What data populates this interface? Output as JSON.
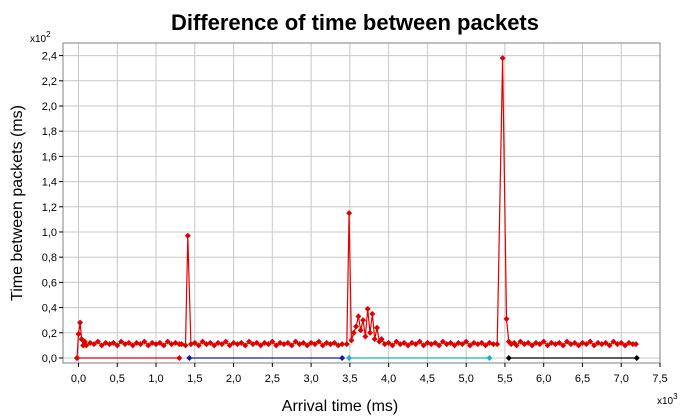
{
  "chart_data": {
    "type": "line",
    "title": "Difference of time between packets",
    "xlabel": "Arrival time (ms)",
    "ylabel": "Time between packets (ms)",
    "x_multiplier_label": "x10",
    "x_multiplier_exp": "3",
    "y_multiplier_label": "x10",
    "y_multiplier_exp": "2",
    "xlim": [
      -0.2,
      7.5
    ],
    "ylim": [
      -0.04,
      2.5
    ],
    "grid": true,
    "x_ticks": [
      0.0,
      0.5,
      1.0,
      1.5,
      2.0,
      2.5,
      3.0,
      3.5,
      4.0,
      4.5,
      5.0,
      5.5,
      6.0,
      6.5,
      7.0,
      7.5
    ],
    "x_tick_labels": [
      "0,0",
      "0,5",
      "1,0",
      "1,5",
      "2,0",
      "2,5",
      "3,0",
      "3,5",
      "4,0",
      "4,5",
      "5,0",
      "5,5",
      "6,0",
      "6,5",
      "7,0",
      "7,5"
    ],
    "y_ticks": [
      0.0,
      0.2,
      0.4,
      0.6,
      0.8,
      1.0,
      1.2,
      1.4,
      1.6,
      1.8,
      2.0,
      2.2,
      2.4
    ],
    "y_tick_labels": [
      "0,0",
      "0,2",
      "0,4",
      "0,6",
      "0,8",
      "1,0",
      "1,2",
      "1,4",
      "1,6",
      "1,8",
      "2,0",
      "2,2",
      "2,4"
    ],
    "series": [
      {
        "color": "#e00000",
        "x": [
          -0.02,
          0.0,
          0.02,
          0.04,
          0.06,
          0.08,
          0.1,
          0.15,
          0.2,
          0.25,
          0.3,
          0.35,
          0.4,
          0.45,
          0.5,
          0.55,
          0.6,
          0.65,
          0.7,
          0.75,
          0.8,
          0.85,
          0.9,
          0.95,
          1.0,
          1.05,
          1.1,
          1.15,
          1.2,
          1.25,
          1.3,
          1.33,
          1.38,
          1.41,
          1.45,
          1.5,
          1.55,
          1.6,
          1.65,
          1.7,
          1.75,
          1.8,
          1.85,
          1.9,
          1.95,
          2.0,
          2.05,
          2.1,
          2.15,
          2.2,
          2.25,
          2.3,
          2.35,
          2.4,
          2.45,
          2.5,
          2.55,
          2.6,
          2.65,
          2.7,
          2.75,
          2.8,
          2.85,
          2.9,
          2.95,
          3.0,
          3.05,
          3.1,
          3.15,
          3.2,
          3.25,
          3.3,
          3.35,
          3.4,
          3.46,
          3.49,
          3.52,
          3.55,
          3.58,
          3.61,
          3.64,
          3.67,
          3.7,
          3.73,
          3.76,
          3.79,
          3.82,
          3.85,
          3.88,
          3.91,
          3.95,
          4.0,
          4.05,
          4.1,
          4.15,
          4.2,
          4.25,
          4.3,
          4.35,
          4.4,
          4.45,
          4.5,
          4.55,
          4.6,
          4.65,
          4.7,
          4.75,
          4.8,
          4.85,
          4.9,
          4.95,
          5.0,
          5.05,
          5.1,
          5.15,
          5.2,
          5.25,
          5.3,
          5.35,
          5.4,
          5.47,
          5.52,
          5.55,
          5.58,
          5.62,
          5.65,
          5.7,
          5.75,
          5.8,
          5.85,
          5.9,
          5.95,
          6.0,
          6.05,
          6.1,
          6.15,
          6.2,
          6.25,
          6.3,
          6.35,
          6.4,
          6.45,
          6.5,
          6.55,
          6.6,
          6.65,
          6.7,
          6.75,
          6.8,
          6.85,
          6.9,
          6.95,
          7.0,
          7.05,
          7.1,
          7.15,
          7.19
        ],
        "y": [
          0.0,
          0.19,
          0.28,
          0.15,
          0.1,
          0.13,
          0.1,
          0.12,
          0.11,
          0.13,
          0.1,
          0.12,
          0.11,
          0.12,
          0.1,
          0.13,
          0.11,
          0.12,
          0.1,
          0.12,
          0.11,
          0.13,
          0.1,
          0.12,
          0.11,
          0.12,
          0.1,
          0.13,
          0.11,
          0.12,
          0.11,
          0.11,
          0.1,
          0.97,
          0.11,
          0.12,
          0.1,
          0.13,
          0.11,
          0.12,
          0.1,
          0.12,
          0.11,
          0.13,
          0.1,
          0.12,
          0.11,
          0.12,
          0.1,
          0.13,
          0.11,
          0.12,
          0.1,
          0.12,
          0.11,
          0.13,
          0.1,
          0.12,
          0.11,
          0.12,
          0.1,
          0.13,
          0.11,
          0.12,
          0.1,
          0.12,
          0.11,
          0.13,
          0.1,
          0.12,
          0.11,
          0.12,
          0.1,
          0.11,
          0.11,
          1.15,
          0.14,
          0.2,
          0.25,
          0.33,
          0.22,
          0.3,
          0.17,
          0.39,
          0.2,
          0.35,
          0.15,
          0.24,
          0.13,
          0.15,
          0.11,
          0.12,
          0.1,
          0.13,
          0.11,
          0.12,
          0.1,
          0.12,
          0.11,
          0.13,
          0.1,
          0.12,
          0.11,
          0.12,
          0.1,
          0.13,
          0.11,
          0.12,
          0.1,
          0.12,
          0.11,
          0.13,
          0.1,
          0.12,
          0.11,
          0.12,
          0.1,
          0.12,
          0.11,
          0.11,
          2.38,
          0.31,
          0.13,
          0.11,
          0.12,
          0.1,
          0.13,
          0.11,
          0.12,
          0.1,
          0.12,
          0.11,
          0.13,
          0.1,
          0.12,
          0.11,
          0.12,
          0.1,
          0.13,
          0.11,
          0.12,
          0.1,
          0.12,
          0.11,
          0.13,
          0.1,
          0.12,
          0.11,
          0.12,
          0.1,
          0.13,
          0.11,
          0.12,
          0.1,
          0.12,
          0.11,
          0.11
        ]
      },
      {
        "color": "#e00000",
        "x": [
          -0.02,
          1.3
        ],
        "y": [
          0.0,
          0.0
        ]
      },
      {
        "color": "#1a1aa0",
        "x": [
          1.43,
          3.4
        ],
        "y": [
          0.0,
          0.0
        ]
      },
      {
        "color": "#20b0c0",
        "x": [
          3.49,
          5.3
        ],
        "y": [
          0.0,
          0.0
        ]
      },
      {
        "color": "#000000",
        "x": [
          5.55,
          7.2
        ],
        "y": [
          0.0,
          0.0
        ]
      }
    ]
  }
}
